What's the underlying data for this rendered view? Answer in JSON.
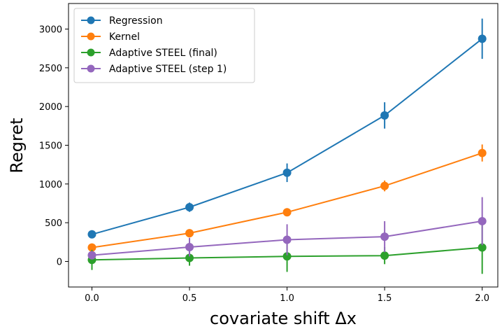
{
  "chart_data": {
    "type": "line",
    "x": [
      0.0,
      0.5,
      1.0,
      1.5,
      2.0
    ],
    "x_ticks": [
      "0.0",
      "0.5",
      "1.0",
      "1.5",
      "2.0"
    ],
    "y_ticks": [
      "0",
      "500",
      "1000",
      "1500",
      "2000",
      "2500",
      "3000"
    ],
    "xlabel": "covariate shift  Δx",
    "ylabel": "Regret",
    "xlim": [
      -0.12,
      2.08
    ],
    "ylim": [
      -330,
      3330
    ],
    "grid": false,
    "legend_position": "top-left",
    "series": [
      {
        "name": "Regression",
        "color": "#1f77b4",
        "values": [
          350,
          700,
          1145,
          1885,
          2875
        ],
        "error": [
          40,
          60,
          120,
          170,
          260
        ]
      },
      {
        "name": "Kernel",
        "color": "#ff7f0e",
        "values": [
          180,
          365,
          635,
          975,
          1400
        ],
        "error": [
          30,
          50,
          40,
          70,
          110
        ]
      },
      {
        "name": "Adaptive STEEL (final)",
        "color": "#2ca02c",
        "values": [
          20,
          45,
          65,
          75,
          180
        ],
        "error": [
          130,
          100,
          200,
          110,
          340
        ]
      },
      {
        "name": "Adaptive STEEL (step 1)",
        "color": "#9467bd",
        "values": [
          80,
          185,
          280,
          320,
          520
        ],
        "error": [
          40,
          120,
          200,
          200,
          310
        ]
      }
    ]
  }
}
